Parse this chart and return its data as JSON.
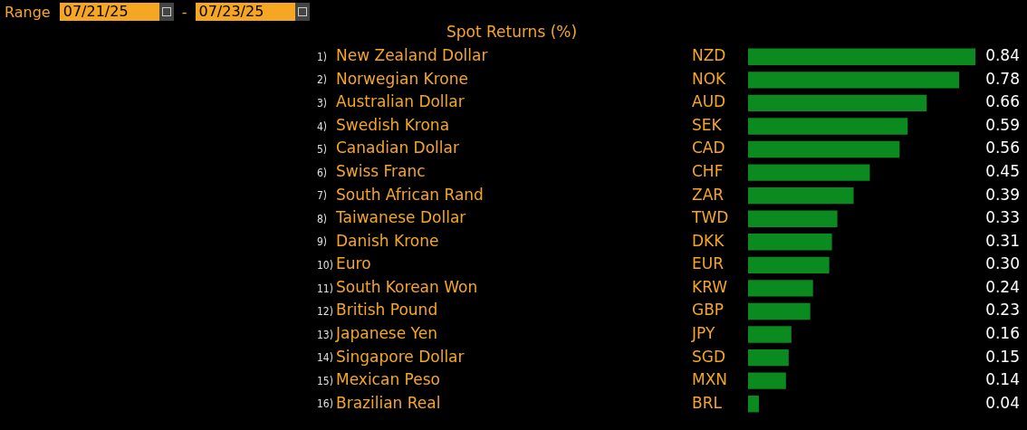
{
  "chart_data": {
    "type": "bar",
    "orientation": "horizontal",
    "title": "Spot Returns (%)",
    "categories": [
      "1) New Zealand Dollar",
      "2) Norwegian Krone",
      "3) Australian Dollar",
      "4) Swedish Krona",
      "5) Canadian Dollar",
      "6) Swiss Franc",
      "7) South African Rand",
      "8) Taiwanese Dollar",
      "9) Danish Krone",
      "10) Euro",
      "11) South Korean Won",
      "12) British Pound",
      "13) Japanese Yen",
      "14) Singapore Dollar",
      "15) Mexican Peso",
      "16) Brazilian Real"
    ],
    "y2_categories": [
      "NZD",
      "NOK",
      "AUD",
      "SEK",
      "CAD",
      "CHF",
      "ZAR",
      "TWD",
      "DKK",
      "EUR",
      "KRW",
      "GBP",
      "JPY",
      "SGD",
      "MXN",
      "BRL"
    ],
    "values": [
      0.84,
      0.78,
      0.66,
      0.59,
      0.56,
      0.45,
      0.39,
      0.33,
      0.31,
      0.3,
      0.24,
      0.23,
      0.16,
      0.15,
      0.14,
      0.04
    ],
    "value_labels": [
      "0.84",
      "0.78",
      "0.66",
      "0.59",
      "0.56",
      "0.45",
      "0.39",
      "0.33",
      "0.31",
      "0.30",
      "0.24",
      "0.23",
      "0.16",
      "0.15",
      "0.14",
      "0.04"
    ],
    "color": "#0b8a1f",
    "legend": false,
    "annotations": [
      "Range",
      "07/21/25",
      "-",
      "07/23/25"
    ]
  }
}
